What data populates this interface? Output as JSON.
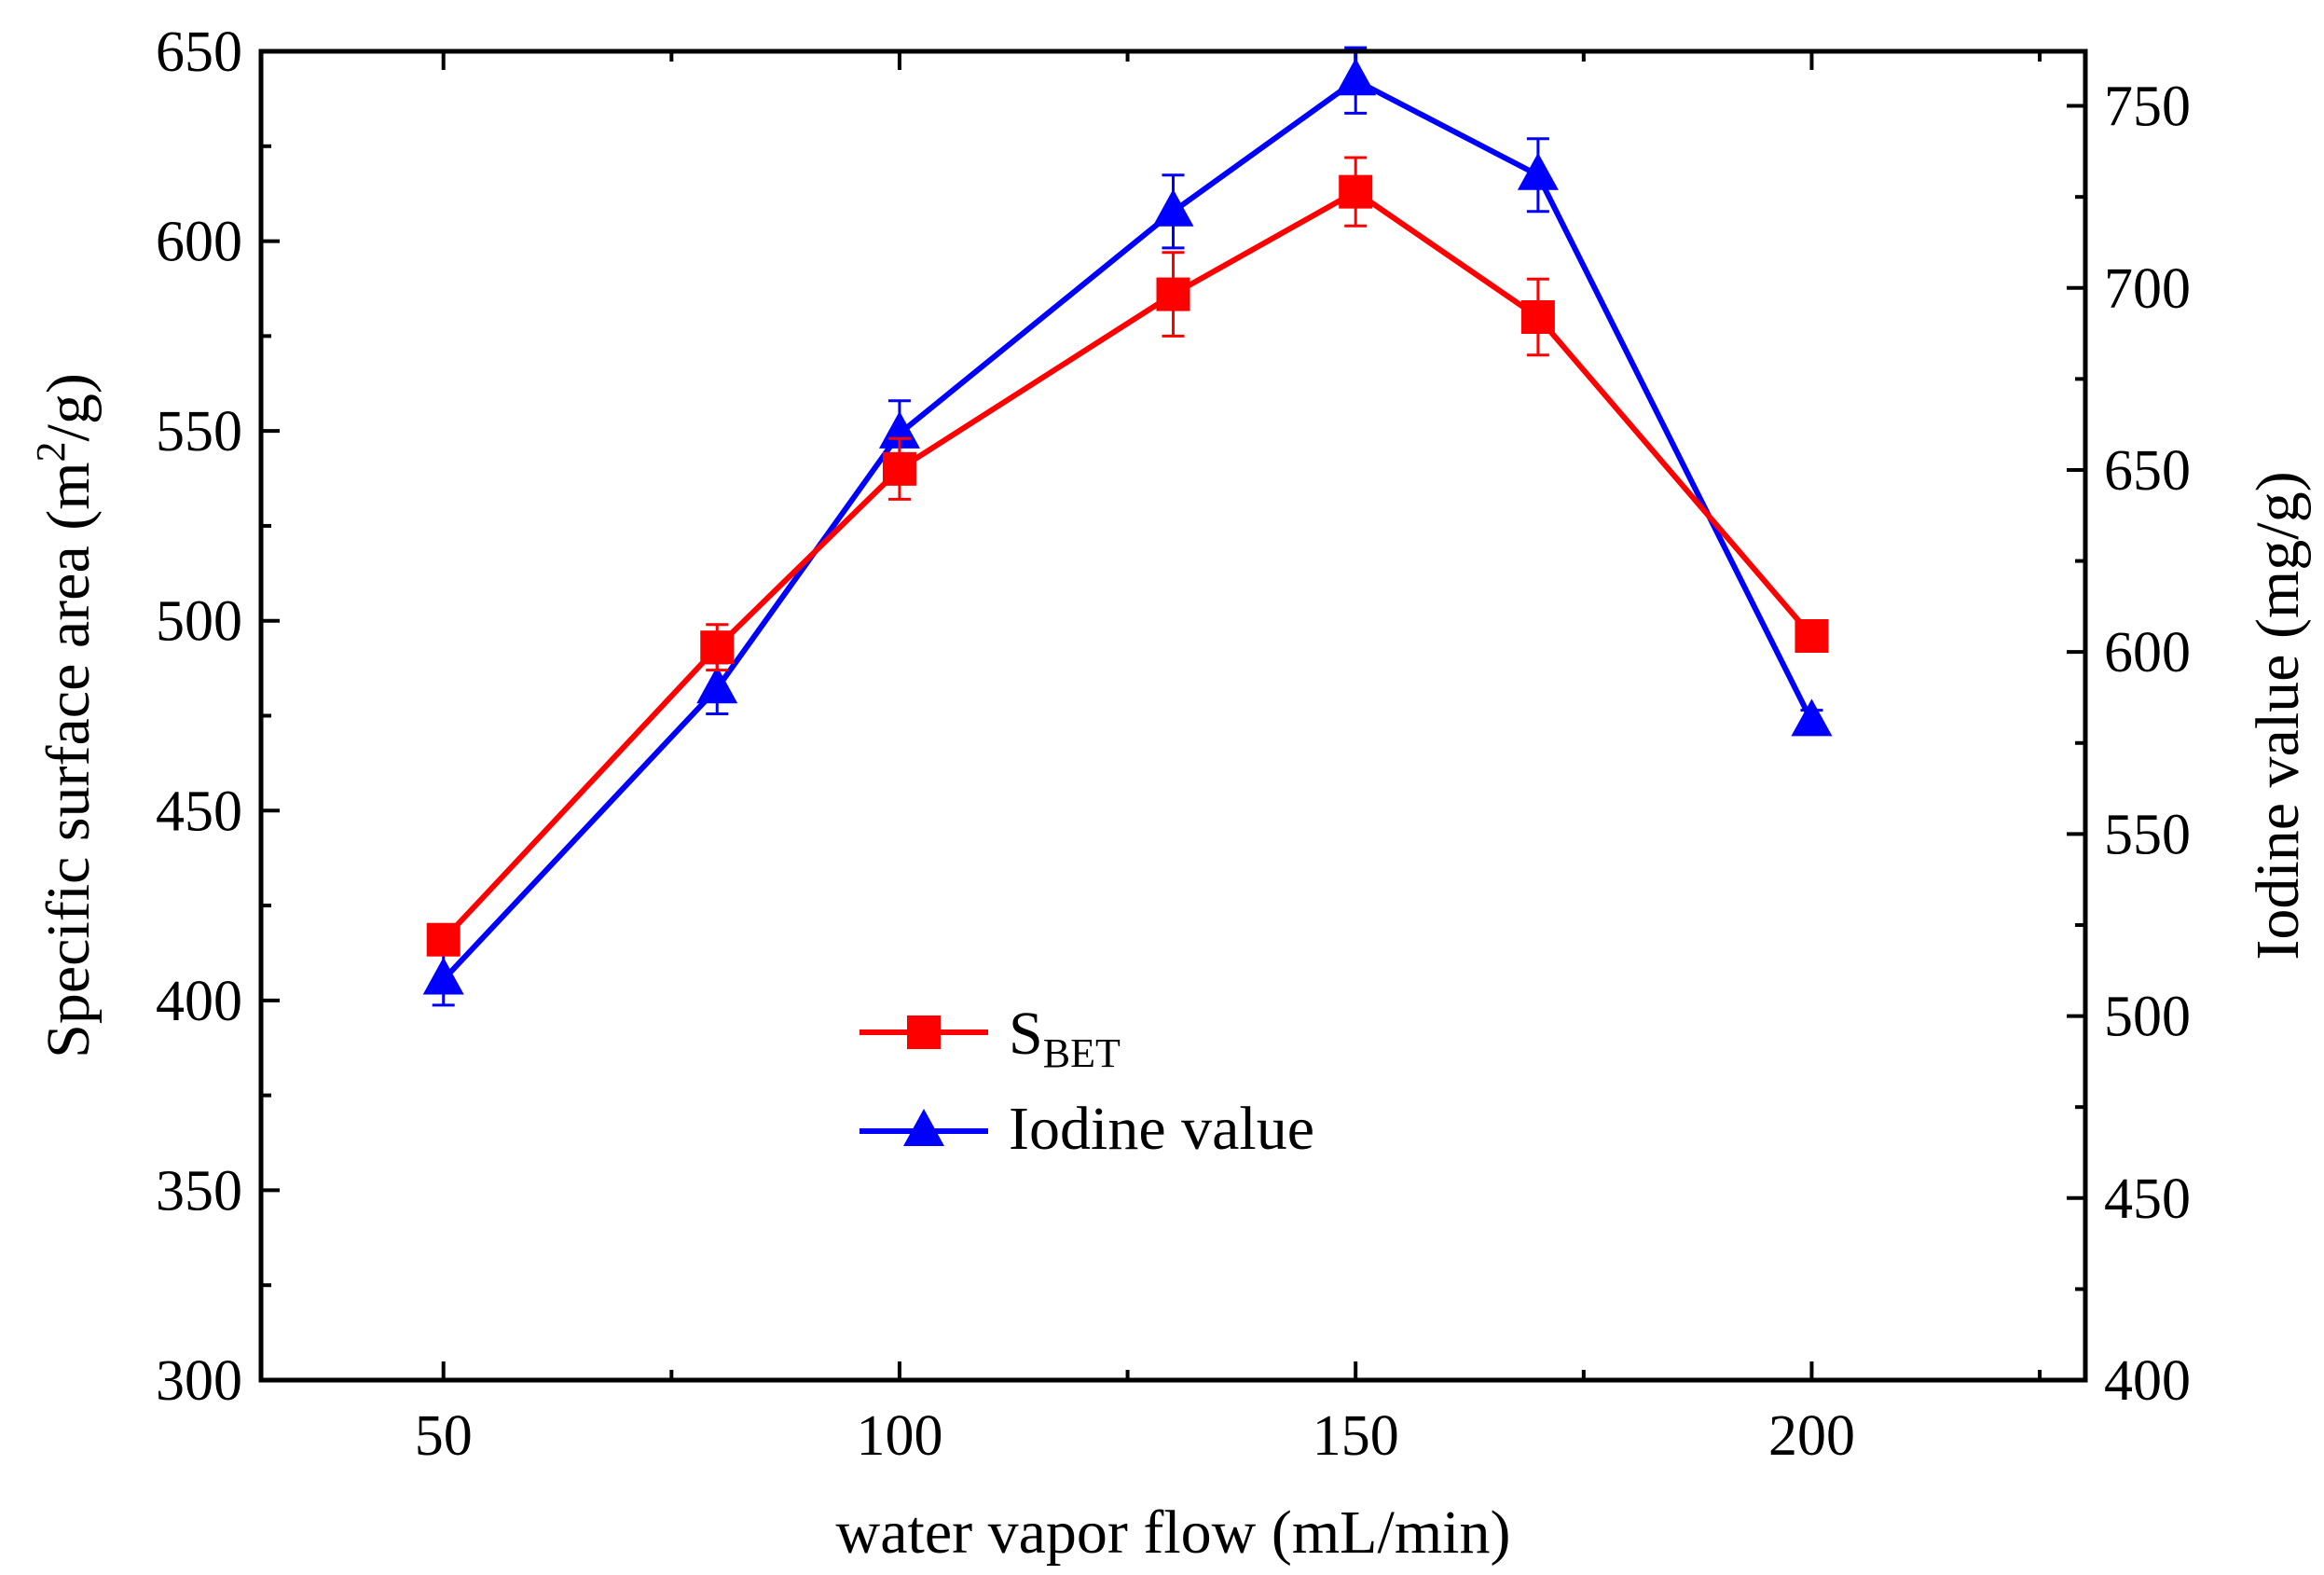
{
  "chart_data": {
    "type": "line",
    "x": [
      50,
      80,
      100,
      130,
      150,
      170,
      200
    ],
    "xlabel": "water vapor flow (mL/min)",
    "xlim": [
      30,
      230
    ],
    "xticks": [
      50,
      100,
      150,
      200
    ],
    "ylabel_left": {
      "prefix": "Specific surface area (m",
      "sup": "2",
      "suffix": "/g)"
    },
    "ylim_left": [
      300,
      650
    ],
    "yticks_left": [
      300,
      350,
      400,
      450,
      500,
      550,
      600,
      650
    ],
    "ylabel_right": "Iodine value (mg/g)",
    "ylim_right": [
      400,
      765
    ],
    "yticks_right": [
      400,
      450,
      500,
      550,
      600,
      650,
      700,
      750
    ],
    "series": [
      {
        "name": "S_BET",
        "legend_main": "S",
        "legend_sub": "BET",
        "axis": "left",
        "marker": "square",
        "color": "#ff0000",
        "values": [
          416,
          493,
          540,
          586,
          613,
          580,
          496
        ],
        "errors": [
          3,
          6,
          8,
          11,
          9,
          10,
          0
        ]
      },
      {
        "name": "Iodine value",
        "legend_main": "Iodine value",
        "legend_sub": "",
        "axis": "right",
        "marker": "triangle",
        "color": "#0000ff",
        "values": [
          510,
          590,
          660,
          721,
          757,
          731,
          581
        ],
        "errors": [
          7,
          7,
          9,
          10,
          9,
          10,
          3
        ]
      }
    ]
  }
}
